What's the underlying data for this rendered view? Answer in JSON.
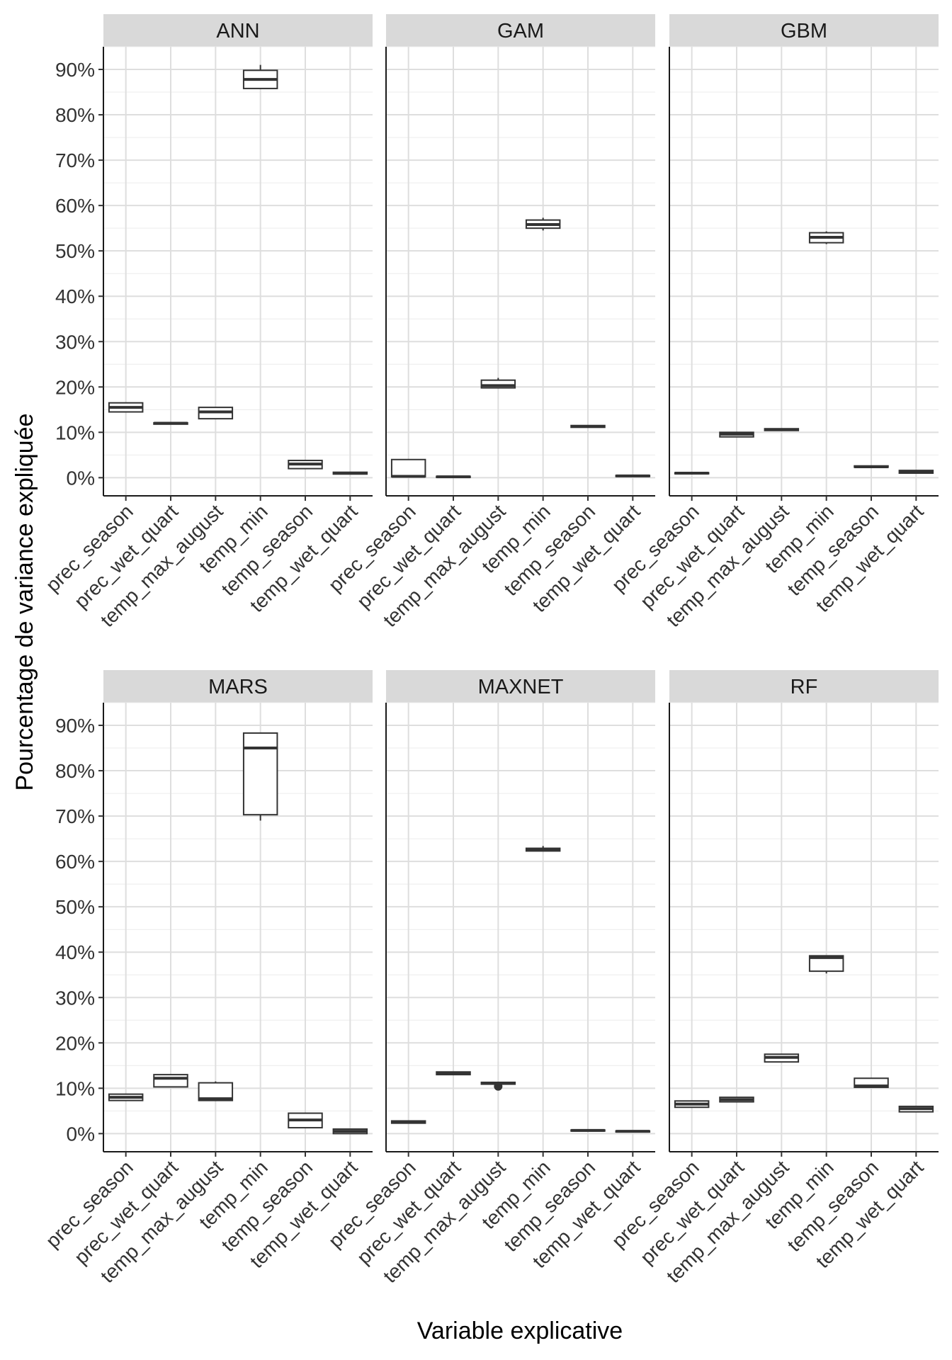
{
  "chart_data": {
    "type": "boxplot",
    "xlabel": "Variable explicative",
    "ylabel": "Pourcentage de variance expliquée",
    "ylim": [
      -4,
      95
    ],
    "y_ticks": [
      0,
      10,
      20,
      30,
      40,
      50,
      60,
      70,
      80,
      90
    ],
    "y_tick_labels": [
      "0%",
      "10%",
      "20%",
      "30%",
      "40%",
      "50%",
      "60%",
      "70%",
      "80%",
      "90%"
    ],
    "categories": [
      "prec_season",
      "prec_wet_quart",
      "temp_max_august",
      "temp_min",
      "temp_season",
      "temp_wet_quart"
    ],
    "grid": true,
    "facet_layout": "2 rows x 3 columns",
    "panels": [
      {
        "title": "ANN",
        "boxes": [
          {
            "min": 14.5,
            "q1": 14.5,
            "median": 15.5,
            "q3": 16.5,
            "max": 16.5
          },
          {
            "min": 11.7,
            "q1": 11.8,
            "median": 12.0,
            "q3": 12.1,
            "max": 12.2
          },
          {
            "min": 13.0,
            "q1": 13.0,
            "median": 14.5,
            "q3": 15.5,
            "max": 15.5
          },
          {
            "min": 85.8,
            "q1": 85.8,
            "median": 87.8,
            "q3": 89.8,
            "max": 91.0
          },
          {
            "min": 2.0,
            "q1": 2.0,
            "median": 3.0,
            "q3": 3.8,
            "max": 3.8
          },
          {
            "min": 0.7,
            "q1": 0.8,
            "median": 1.0,
            "q3": 1.2,
            "max": 1.3
          }
        ]
      },
      {
        "title": "GAM",
        "boxes": [
          {
            "min": 0.2,
            "q1": 0.2,
            "median": 0.3,
            "q3": 4.0,
            "max": 4.0
          },
          {
            "min": 0.1,
            "q1": 0.1,
            "median": 0.2,
            "q3": 0.3,
            "max": 0.4
          },
          {
            "min": 19.8,
            "q1": 19.8,
            "median": 20.3,
            "q3": 21.5,
            "max": 22.0
          },
          {
            "min": 54.5,
            "q1": 55.0,
            "median": 55.8,
            "q3": 56.8,
            "max": 57.3
          },
          {
            "min": 11.0,
            "q1": 11.1,
            "median": 11.3,
            "q3": 11.5,
            "max": 11.6
          },
          {
            "min": 0.2,
            "q1": 0.3,
            "median": 0.4,
            "q3": 0.5,
            "max": 0.6
          }
        ]
      },
      {
        "title": "GBM",
        "boxes": [
          {
            "min": 0.8,
            "q1": 0.9,
            "median": 1.0,
            "q3": 1.1,
            "max": 1.2
          },
          {
            "min": 9.0,
            "q1": 9.0,
            "median": 9.6,
            "q3": 10.0,
            "max": 10.0
          },
          {
            "min": 10.3,
            "q1": 10.4,
            "median": 10.6,
            "q3": 10.8,
            "max": 10.9
          },
          {
            "min": 51.5,
            "q1": 51.8,
            "median": 53.0,
            "q3": 54.0,
            "max": 54.3
          },
          {
            "min": 2.2,
            "q1": 2.3,
            "median": 2.4,
            "q3": 2.6,
            "max": 2.7
          },
          {
            "min": 1.0,
            "q1": 1.0,
            "median": 1.3,
            "q3": 1.6,
            "max": 1.6
          }
        ]
      },
      {
        "title": "MARS",
        "boxes": [
          {
            "min": 7.2,
            "q1": 7.3,
            "median": 8.0,
            "q3": 8.7,
            "max": 8.8
          },
          {
            "min": 10.3,
            "q1": 10.3,
            "median": 12.2,
            "q3": 13.0,
            "max": 13.0
          },
          {
            "min": 7.2,
            "q1": 7.3,
            "median": 7.7,
            "q3": 11.2,
            "max": 11.5
          },
          {
            "min": 69.0,
            "q1": 70.3,
            "median": 85.0,
            "q3": 88.3,
            "max": 88.3
          },
          {
            "min": 1.3,
            "q1": 1.3,
            "median": 3.0,
            "q3": 4.5,
            "max": 4.5
          },
          {
            "min": 0.0,
            "q1": 0.0,
            "median": 0.5,
            "q3": 1.0,
            "max": 1.0
          }
        ]
      },
      {
        "title": "MAXNET",
        "boxes": [
          {
            "min": 2.2,
            "q1": 2.3,
            "median": 2.5,
            "q3": 2.8,
            "max": 2.9
          },
          {
            "min": 12.9,
            "q1": 13.0,
            "median": 13.3,
            "q3": 13.6,
            "max": 13.7
          },
          {
            "min": 10.8,
            "q1": 10.9,
            "median": 11.1,
            "q3": 11.3,
            "max": 11.4,
            "outliers": [
              10.4
            ]
          },
          {
            "min": 62.2,
            "q1": 62.3,
            "median": 62.6,
            "q3": 62.9,
            "max": 63.4
          },
          {
            "min": 0.5,
            "q1": 0.6,
            "median": 0.7,
            "q3": 0.8,
            "max": 0.9
          },
          {
            "min": 0.3,
            "q1": 0.4,
            "median": 0.5,
            "q3": 0.6,
            "max": 0.7
          }
        ]
      },
      {
        "title": "RF",
        "boxes": [
          {
            "min": 5.8,
            "q1": 5.8,
            "median": 6.5,
            "q3": 7.2,
            "max": 7.2
          },
          {
            "min": 7.0,
            "q1": 7.0,
            "median": 7.5,
            "q3": 8.0,
            "max": 8.0
          },
          {
            "min": 15.8,
            "q1": 15.8,
            "median": 16.8,
            "q3": 17.5,
            "max": 17.5
          },
          {
            "min": 35.3,
            "q1": 35.8,
            "median": 38.8,
            "q3": 39.2,
            "max": 39.2
          },
          {
            "min": 10.2,
            "q1": 10.2,
            "median": 10.5,
            "q3": 12.2,
            "max": 12.2
          },
          {
            "min": 4.8,
            "q1": 4.8,
            "median": 5.5,
            "q3": 6.0,
            "max": 6.0
          }
        ]
      }
    ]
  }
}
